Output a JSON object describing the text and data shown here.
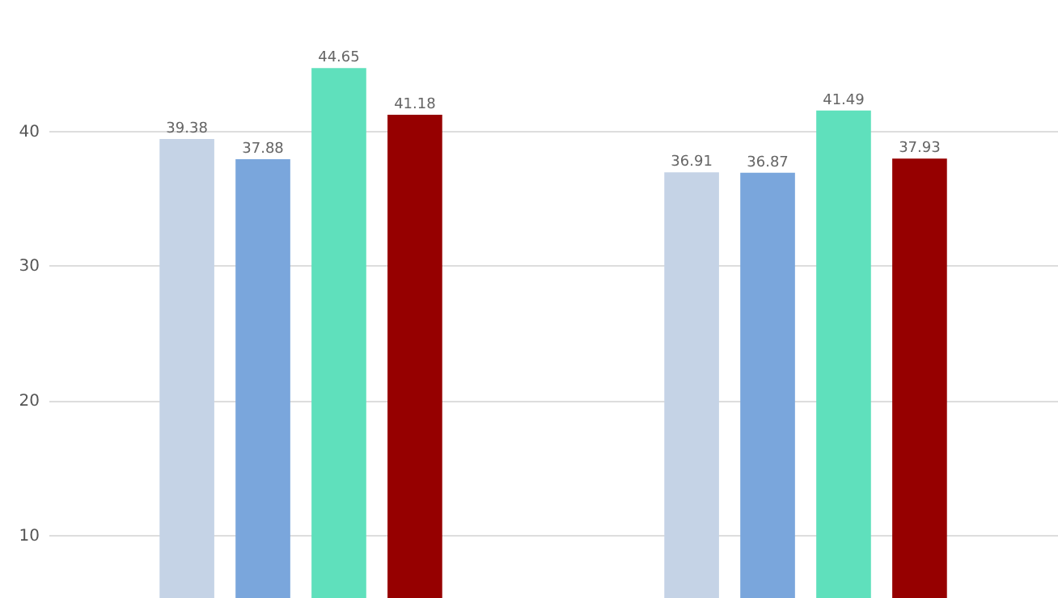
{
  "chart_data": {
    "type": "bar",
    "categories": [
      null,
      null
    ],
    "series": [
      {
        "color": "#c5d3e6",
        "values": [
          39.38,
          36.91
        ]
      },
      {
        "color": "#7aa6dc",
        "values": [
          37.88,
          36.87
        ]
      },
      {
        "color": "#5fe0bc",
        "values": [
          44.65,
          41.49
        ]
      },
      {
        "color": "#960000",
        "values": [
          41.18,
          37.93
        ]
      }
    ],
    "ylim": [
      5.3,
      49.7
    ],
    "yticks": [
      10,
      20,
      30,
      40
    ],
    "grid": "y",
    "data_labels": true
  }
}
